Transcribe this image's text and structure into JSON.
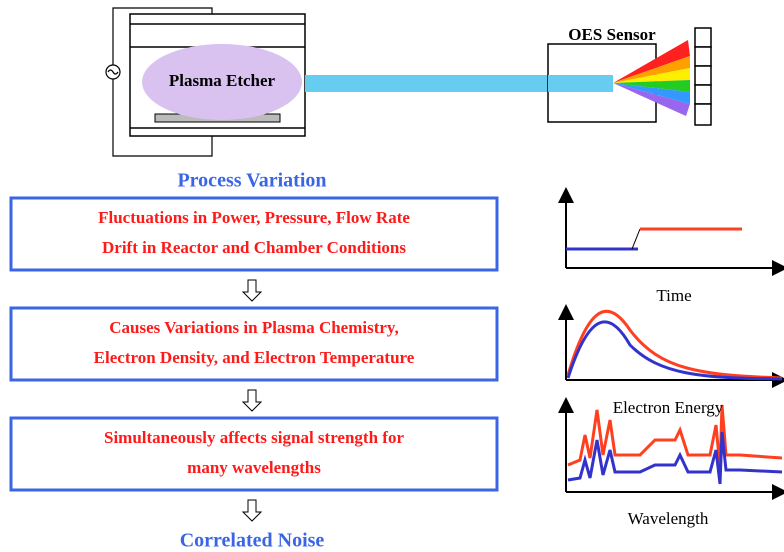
{
  "etcher": {
    "label": "Plasma Etcher"
  },
  "sensor": {
    "label": "OES Sensor"
  },
  "process_title": "Process Variation",
  "boxes": [
    {
      "lines": [
        "Fluctuations in Power, Pressure, Flow Rate",
        "Drift in Reactor and Chamber Conditions"
      ]
    },
    {
      "lines": [
        "Causes Variations in Plasma Chemistry,",
        "Electron Density, and Electron Temperature"
      ]
    },
    {
      "lines": [
        "Simultaneously affects signal strength for",
        "many wavelengths"
      ]
    }
  ],
  "result_title": "Correlated Noise",
  "plots": [
    {
      "label": "Time"
    },
    {
      "label": "Electron Energy"
    },
    {
      "label": "Wavelength"
    }
  ]
}
